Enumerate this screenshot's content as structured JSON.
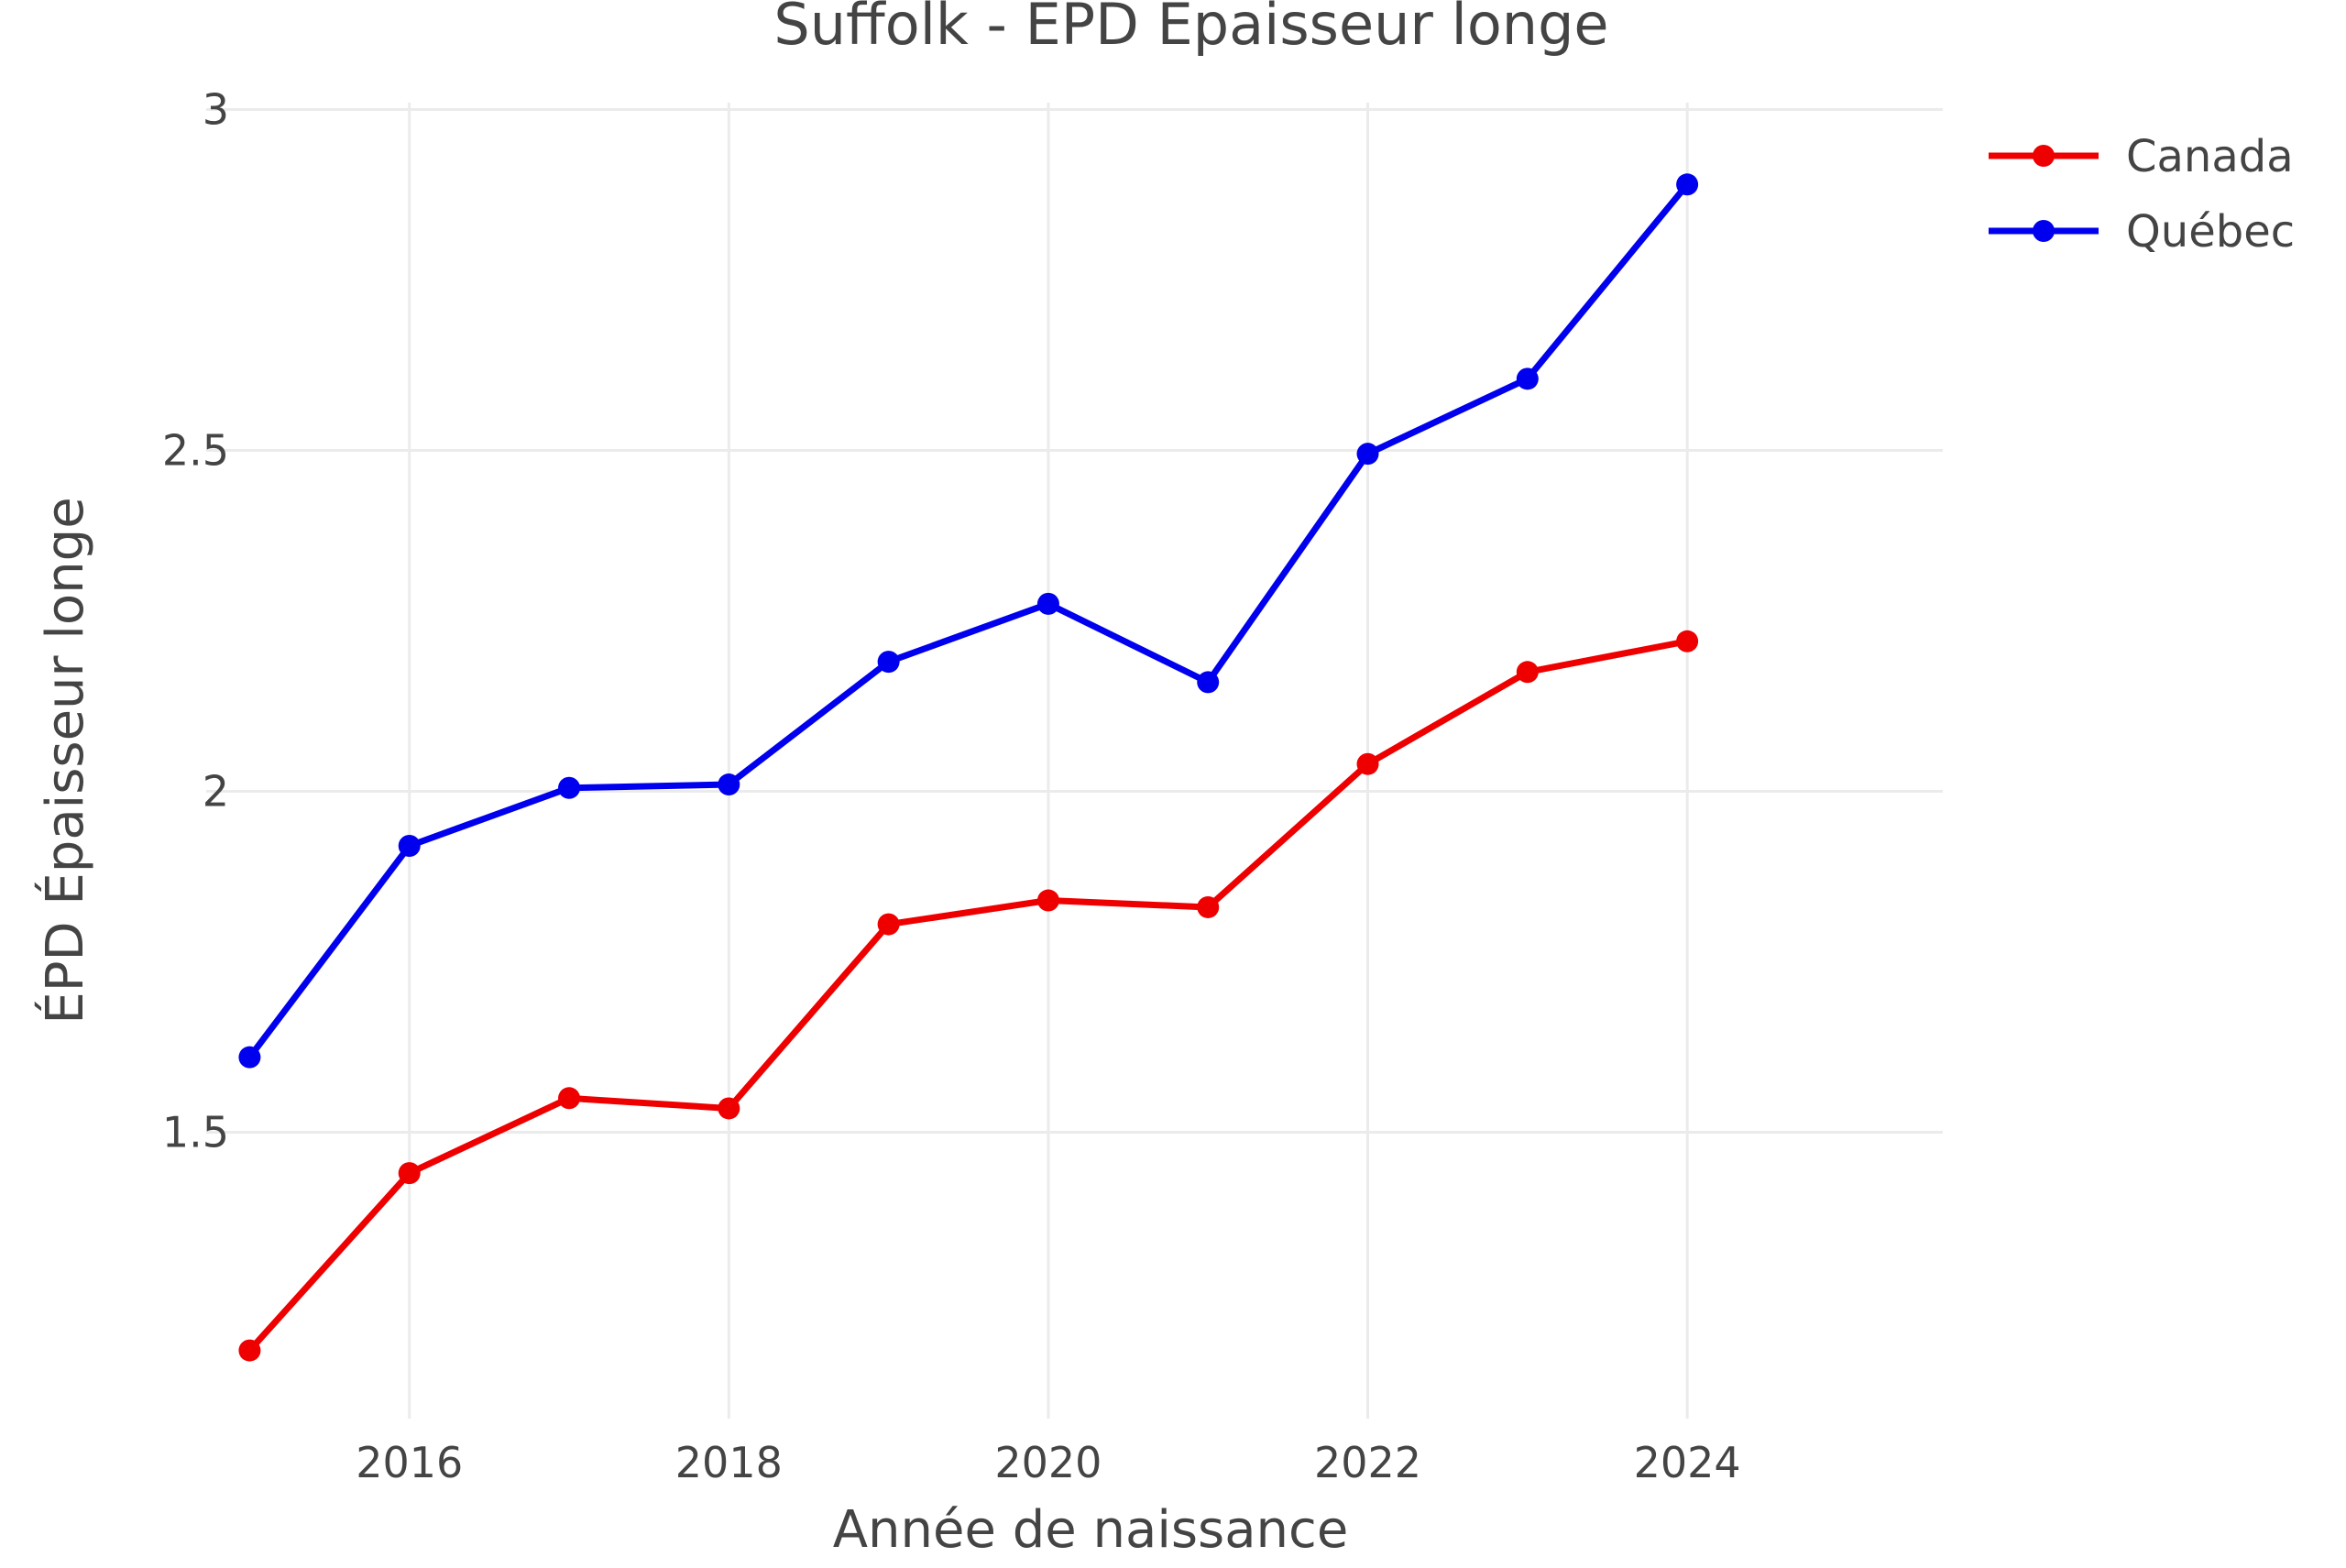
{
  "chart_data": {
    "type": "line",
    "title": "Suffolk - EPD Épaisseur longe",
    "xlabel": "Année de naissance",
    "ylabel": "ÉPD Épaisseur longe",
    "x": [
      2015,
      2016,
      2017,
      2018,
      2019,
      2020,
      2021,
      2022,
      2023,
      2024
    ],
    "series": [
      {
        "name": "Canada",
        "color": "#ee0000",
        "values": [
          1.18,
          1.44,
          1.55,
          1.535,
          1.805,
          1.84,
          1.83,
          2.04,
          2.175,
          2.22
        ]
      },
      {
        "name": "Québec",
        "color": "#0000ee",
        "values": [
          1.61,
          1.92,
          2.005,
          2.01,
          2.19,
          2.275,
          2.16,
          2.495,
          2.605,
          2.89
        ]
      }
    ],
    "xlim": [
      2014.9,
      2025.6
    ],
    "ylim": [
      1.08,
      3.01
    ],
    "x_ticks": [
      2016,
      2018,
      2020,
      2022,
      2024
    ],
    "x_tick_labels": [
      "2016",
      "2018",
      "2020",
      "2022",
      "2024"
    ],
    "y_ticks": [
      1.5,
      2,
      2.5,
      3
    ],
    "y_tick_labels": [
      "1.5",
      "2",
      "2.5",
      "3"
    ],
    "grid": true,
    "legend_position": "top-right"
  }
}
